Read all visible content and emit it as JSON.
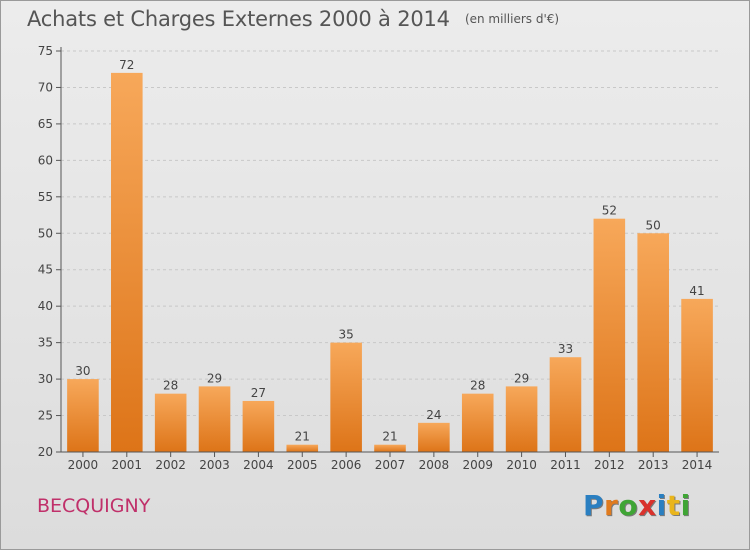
{
  "title": "Achats et Charges Externes 2000 à 2014",
  "unit_label": "(en milliers d'€)",
  "city": "BECQUIGNY",
  "logo": {
    "text": "Proxiti",
    "letters": [
      {
        "ch": "P",
        "color": "#2a7fc1"
      },
      {
        "ch": "r",
        "color": "#e07b1e"
      },
      {
        "ch": "o",
        "color": "#3fa535"
      },
      {
        "ch": "x",
        "color": "#d9322c"
      },
      {
        "ch": "i",
        "color": "#2a7fc1"
      },
      {
        "ch": "t",
        "color": "#e9b51c"
      },
      {
        "ch": "i",
        "color": "#3fa535"
      }
    ]
  },
  "colors": {
    "bar_light": "#f7a85a",
    "bar_dark": "#dd7418",
    "axis": "#555555",
    "grid": "#c8c8c8",
    "text": "#444444"
  },
  "chart_data": {
    "type": "bar",
    "title": "Achats et Charges Externes 2000 à 2014",
    "subtitle": "(en milliers d'€)",
    "categories": [
      "2000",
      "2001",
      "2002",
      "2003",
      "2004",
      "2005",
      "2006",
      "2007",
      "2008",
      "2009",
      "2010",
      "2011",
      "2012",
      "2013",
      "2014"
    ],
    "values": [
      30,
      72,
      28,
      29,
      27,
      21,
      35,
      21,
      24,
      28,
      29,
      33,
      52,
      50,
      41
    ],
    "ylim": [
      20,
      75
    ],
    "yticks": [
      20,
      25,
      30,
      35,
      40,
      45,
      50,
      55,
      60,
      65,
      70,
      75
    ],
    "xlabel": "",
    "ylabel": "",
    "grid": true
  }
}
